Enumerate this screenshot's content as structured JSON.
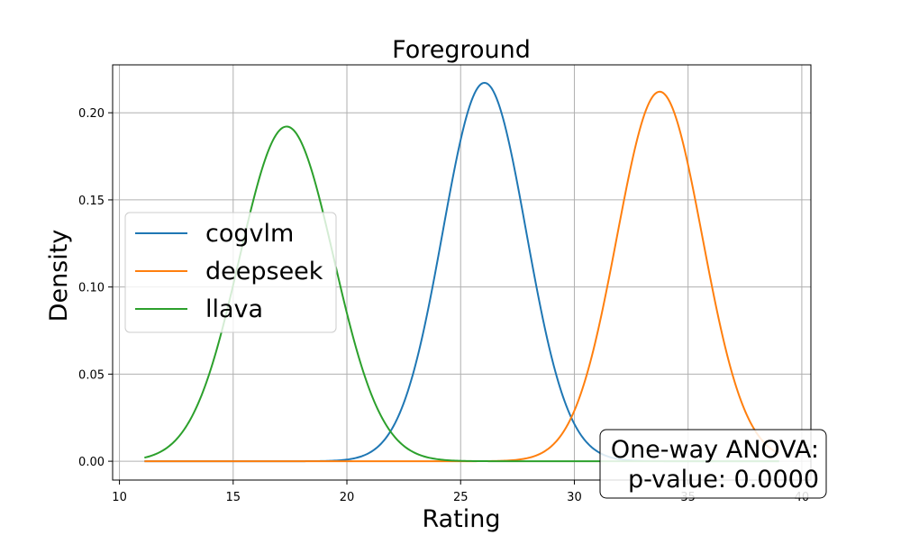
{
  "chart_data": {
    "type": "line",
    "title": "Foreground",
    "xlabel": "Rating",
    "ylabel": "Density",
    "xlim": [
      9.7,
      40.4
    ],
    "ylim": [
      -0.0108,
      0.2275
    ],
    "xticks": [
      10,
      15,
      20,
      25,
      30,
      35,
      40
    ],
    "xtick_labels": [
      "10",
      "15",
      "20",
      "25",
      "30",
      "35",
      "40"
    ],
    "yticks": [
      0.0,
      0.05,
      0.1,
      0.15,
      0.2
    ],
    "ytick_labels": [
      "0.00",
      "0.05",
      "0.10",
      "0.15",
      "0.20"
    ],
    "grid": true,
    "legend_position": "center-left",
    "x_range": [
      11.1,
      39.0
    ],
    "series": [
      {
        "name": "cogvlm",
        "color": "#1f77b4",
        "peak_x": 26.05,
        "peak_density": 0.2172,
        "sd": 1.835
      },
      {
        "name": "deepseek",
        "color": "#ff7f0e",
        "peak_x": 33.75,
        "peak_density": 0.2121,
        "sd": 1.88
      },
      {
        "name": "llava",
        "color": "#2ca02c",
        "peak_x": 17.35,
        "peak_density": 0.1921,
        "sd": 2.075
      }
    ],
    "annotation": {
      "line1": "One-way ANOVA:",
      "line2": "p-value: 0.0000"
    }
  }
}
